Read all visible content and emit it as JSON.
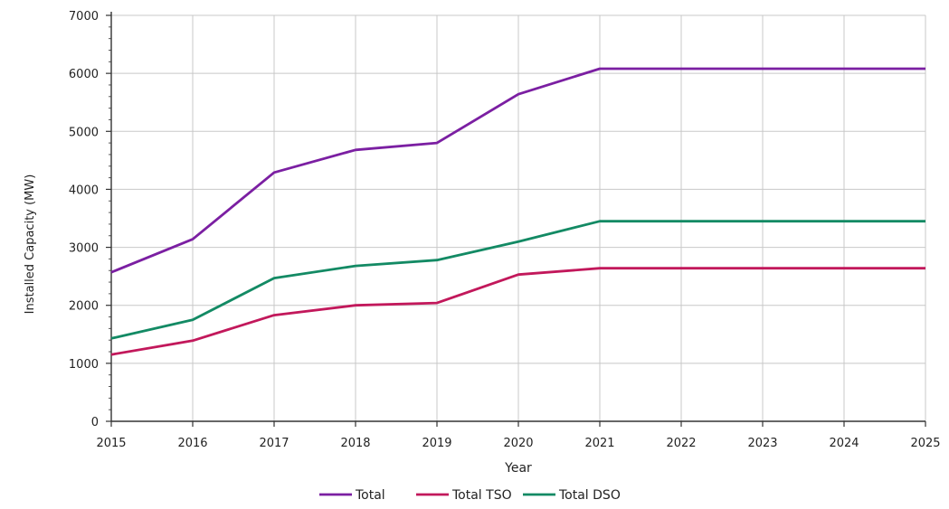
{
  "chart_data": {
    "type": "line",
    "title": "",
    "xlabel": "Year",
    "ylabel": "Installed Capacity (MW)",
    "x": [
      2015,
      2016,
      2017,
      2018,
      2019,
      2020,
      2021,
      2022,
      2023,
      2024,
      2025
    ],
    "x_tick_labels": [
      "2015",
      "2016",
      "2017",
      "2018",
      "2019",
      "2020",
      "2021",
      "2022",
      "2023",
      "2024",
      "2025"
    ],
    "ylim": [
      0,
      7000
    ],
    "y_ticks": [
      0,
      1000,
      2000,
      3000,
      4000,
      5000,
      6000,
      7000
    ],
    "y_tick_labels": [
      "0",
      "1000",
      "2000",
      "3000",
      "4000",
      "5000",
      "6000",
      "7000"
    ],
    "grid": true,
    "legend_position": "bottom-center",
    "series": [
      {
        "name": "Total",
        "color": "#7b1fa2",
        "values": [
          2570,
          3140,
          4290,
          4680,
          4800,
          5640,
          6080,
          6080,
          6080,
          6080,
          6080
        ]
      },
      {
        "name": "Total TSO",
        "color": "#c2185b",
        "values": [
          1150,
          1390,
          1830,
          2000,
          2040,
          2530,
          2640,
          2640,
          2640,
          2640,
          2640
        ]
      },
      {
        "name": "Total DSO",
        "color": "#138a64",
        "values": [
          1430,
          1750,
          2470,
          2680,
          2780,
          3100,
          3450,
          3450,
          3450,
          3450,
          3450
        ]
      }
    ]
  }
}
